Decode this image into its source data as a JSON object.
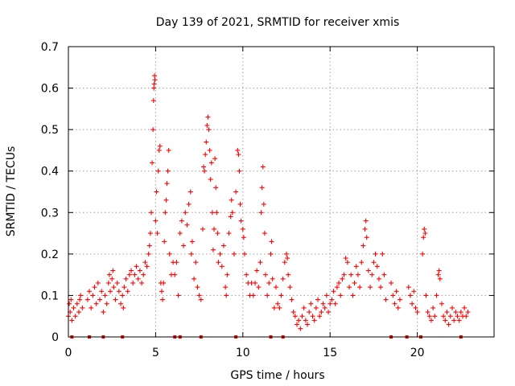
{
  "colors": {
    "series": "#ff0000",
    "grid": "#a0a0a0",
    "axis": "#000000"
  },
  "chart_data": {
    "type": "scatter",
    "title": "Day 139 of 2021, SRMTID for receiver xmis",
    "xlabel": "GPS time / hours",
    "ylabel": "SRMTID / TECUs",
    "xlim": [
      0,
      24.4
    ],
    "ylim": [
      0,
      0.7
    ],
    "xticks": [
      0,
      5,
      10,
      15,
      20
    ],
    "xtick_labels": [
      "0",
      "5",
      "10",
      "15",
      "20"
    ],
    "yticks": [
      0,
      0.1,
      0.2,
      0.3,
      0.4,
      0.5,
      0.6,
      0.7
    ],
    "ytick_labels": [
      "0",
      "0.1",
      "0.2",
      "0.3",
      "0.4",
      "0.5",
      "0.6",
      "0.7"
    ],
    "grid": true,
    "marker": "+",
    "series": [
      {
        "name": "SRMTID",
        "points": [
          [
            0.0,
            0.05
          ],
          [
            0.05,
            0.08
          ],
          [
            0.1,
            0.06
          ],
          [
            0.15,
            0.09
          ],
          [
            0.2,
            0.04
          ],
          [
            0.3,
            0.07
          ],
          [
            0.4,
            0.05
          ],
          [
            0.5,
            0.08
          ],
          [
            0.6,
            0.06
          ],
          [
            0.65,
            0.09
          ],
          [
            0.7,
            0.1
          ],
          [
            0.8,
            0.07
          ],
          [
            1.1,
            0.09
          ],
          [
            1.2,
            0.11
          ],
          [
            1.3,
            0.07
          ],
          [
            1.4,
            0.1
          ],
          [
            1.5,
            0.12
          ],
          [
            1.6,
            0.08
          ],
          [
            1.7,
            0.13
          ],
          [
            1.8,
            0.09
          ],
          [
            1.9,
            0.11
          ],
          [
            2.0,
            0.06
          ],
          [
            2.1,
            0.1
          ],
          [
            2.2,
            0.08
          ],
          [
            2.3,
            0.13
          ],
          [
            2.35,
            0.15
          ],
          [
            2.4,
            0.11
          ],
          [
            2.5,
            0.14
          ],
          [
            2.55,
            0.16
          ],
          [
            2.6,
            0.12
          ],
          [
            2.7,
            0.09
          ],
          [
            2.8,
            0.13
          ],
          [
            2.9,
            0.11
          ],
          [
            3.0,
            0.08
          ],
          [
            3.1,
            0.1
          ],
          [
            3.15,
            0.07
          ],
          [
            3.2,
            0.12
          ],
          [
            3.3,
            0.14
          ],
          [
            3.4,
            0.11
          ],
          [
            3.5,
            0.15
          ],
          [
            3.6,
            0.16
          ],
          [
            3.7,
            0.13
          ],
          [
            3.8,
            0.15
          ],
          [
            3.9,
            0.17
          ],
          [
            4.0,
            0.14
          ],
          [
            4.1,
            0.16
          ],
          [
            4.2,
            0.13
          ],
          [
            4.3,
            0.15
          ],
          [
            4.4,
            0.18
          ],
          [
            4.5,
            0.17
          ],
          [
            4.6,
            0.2
          ],
          [
            4.65,
            0.22
          ],
          [
            4.7,
            0.25
          ],
          [
            4.75,
            0.3
          ],
          [
            4.8,
            0.42
          ],
          [
            4.85,
            0.5
          ],
          [
            4.88,
            0.57
          ],
          [
            4.9,
            0.6
          ],
          [
            4.92,
            0.61
          ],
          [
            4.94,
            0.63
          ],
          [
            4.96,
            0.62
          ],
          [
            5.0,
            0.28
          ],
          [
            5.05,
            0.35
          ],
          [
            5.1,
            0.25
          ],
          [
            5.15,
            0.4
          ],
          [
            5.2,
            0.45
          ],
          [
            5.25,
            0.46
          ],
          [
            5.3,
            0.13
          ],
          [
            5.35,
            0.11
          ],
          [
            5.4,
            0.09
          ],
          [
            5.45,
            0.13
          ],
          [
            5.5,
            0.23
          ],
          [
            5.55,
            0.3
          ],
          [
            5.6,
            0.33
          ],
          [
            5.65,
            0.37
          ],
          [
            5.7,
            0.4
          ],
          [
            5.75,
            0.45
          ],
          [
            5.8,
            0.2
          ],
          [
            5.9,
            0.15
          ],
          [
            6.0,
            0.18
          ],
          [
            6.1,
            0.15
          ],
          [
            6.2,
            0.18
          ],
          [
            6.3,
            0.1
          ],
          [
            6.4,
            0.25
          ],
          [
            6.5,
            0.28
          ],
          [
            6.6,
            0.22
          ],
          [
            6.7,
            0.3
          ],
          [
            6.8,
            0.27
          ],
          [
            6.9,
            0.32
          ],
          [
            7.0,
            0.35
          ],
          [
            7.05,
            0.2
          ],
          [
            7.1,
            0.23
          ],
          [
            7.2,
            0.14
          ],
          [
            7.3,
            0.18
          ],
          [
            7.4,
            0.12
          ],
          [
            7.5,
            0.1
          ],
          [
            7.6,
            0.09
          ],
          [
            7.7,
            0.26
          ],
          [
            7.75,
            0.41
          ],
          [
            7.8,
            0.4
          ],
          [
            7.85,
            0.44
          ],
          [
            7.9,
            0.47
          ],
          [
            7.95,
            0.51
          ],
          [
            8.0,
            0.53
          ],
          [
            8.05,
            0.5
          ],
          [
            8.1,
            0.45
          ],
          [
            8.15,
            0.38
          ],
          [
            8.2,
            0.42
          ],
          [
            8.25,
            0.3
          ],
          [
            8.3,
            0.21
          ],
          [
            8.35,
            0.26
          ],
          [
            8.4,
            0.43
          ],
          [
            8.45,
            0.36
          ],
          [
            8.5,
            0.3
          ],
          [
            8.55,
            0.25
          ],
          [
            8.6,
            0.18
          ],
          [
            8.7,
            0.2
          ],
          [
            8.8,
            0.17
          ],
          [
            8.9,
            0.22
          ],
          [
            9.0,
            0.12
          ],
          [
            9.05,
            0.1
          ],
          [
            9.1,
            0.15
          ],
          [
            9.2,
            0.25
          ],
          [
            9.3,
            0.29
          ],
          [
            9.35,
            0.33
          ],
          [
            9.4,
            0.3
          ],
          [
            9.5,
            0.2
          ],
          [
            9.6,
            0.35
          ],
          [
            9.7,
            0.45
          ],
          [
            9.75,
            0.44
          ],
          [
            9.8,
            0.4
          ],
          [
            9.85,
            0.32
          ],
          [
            9.9,
            0.28
          ],
          [
            10.0,
            0.26
          ],
          [
            10.05,
            0.24
          ],
          [
            10.1,
            0.2
          ],
          [
            10.2,
            0.15
          ],
          [
            10.3,
            0.13
          ],
          [
            10.4,
            0.1
          ],
          [
            10.5,
            0.13
          ],
          [
            10.6,
            0.1
          ],
          [
            10.7,
            0.13
          ],
          [
            10.8,
            0.16
          ],
          [
            10.9,
            0.12
          ],
          [
            11.0,
            0.18
          ],
          [
            11.05,
            0.3
          ],
          [
            11.1,
            0.36
          ],
          [
            11.15,
            0.41
          ],
          [
            11.2,
            0.32
          ],
          [
            11.25,
            0.25
          ],
          [
            11.3,
            0.15
          ],
          [
            11.4,
            0.1
          ],
          [
            11.5,
            0.13
          ],
          [
            11.6,
            0.2
          ],
          [
            11.65,
            0.23
          ],
          [
            11.7,
            0.14
          ],
          [
            11.8,
            0.07
          ],
          [
            11.9,
            0.12
          ],
          [
            12.0,
            0.08
          ],
          [
            12.1,
            0.07
          ],
          [
            12.2,
            0.1
          ],
          [
            12.3,
            0.14
          ],
          [
            12.4,
            0.18
          ],
          [
            12.5,
            0.2
          ],
          [
            12.55,
            0.19
          ],
          [
            12.6,
            0.15
          ],
          [
            12.7,
            0.12
          ],
          [
            12.8,
            0.09
          ],
          [
            12.9,
            0.06
          ],
          [
            13.0,
            0.05
          ],
          [
            13.1,
            0.03
          ],
          [
            13.2,
            0.04
          ],
          [
            13.3,
            0.02
          ],
          [
            13.4,
            0.05
          ],
          [
            13.5,
            0.07
          ],
          [
            13.6,
            0.04
          ],
          [
            13.7,
            0.03
          ],
          [
            13.8,
            0.06
          ],
          [
            13.9,
            0.08
          ],
          [
            14.0,
            0.05
          ],
          [
            14.1,
            0.04
          ],
          [
            14.2,
            0.07
          ],
          [
            14.3,
            0.09
          ],
          [
            14.4,
            0.05
          ],
          [
            14.5,
            0.06
          ],
          [
            14.6,
            0.08
          ],
          [
            14.7,
            0.07
          ],
          [
            14.8,
            0.1
          ],
          [
            14.9,
            0.06
          ],
          [
            15.0,
            0.08
          ],
          [
            15.1,
            0.09
          ],
          [
            15.2,
            0.11
          ],
          [
            15.3,
            0.08
          ],
          [
            15.4,
            0.12
          ],
          [
            15.5,
            0.13
          ],
          [
            15.6,
            0.1
          ],
          [
            15.7,
            0.14
          ],
          [
            15.8,
            0.15
          ],
          [
            15.9,
            0.19
          ],
          [
            16.0,
            0.18
          ],
          [
            16.1,
            0.12
          ],
          [
            16.2,
            0.15
          ],
          [
            16.3,
            0.1
          ],
          [
            16.4,
            0.13
          ],
          [
            16.5,
            0.17
          ],
          [
            16.6,
            0.15
          ],
          [
            16.7,
            0.12
          ],
          [
            16.8,
            0.18
          ],
          [
            16.9,
            0.22
          ],
          [
            17.0,
            0.26
          ],
          [
            17.05,
            0.28
          ],
          [
            17.1,
            0.24
          ],
          [
            17.2,
            0.16
          ],
          [
            17.3,
            0.12
          ],
          [
            17.4,
            0.15
          ],
          [
            17.5,
            0.18
          ],
          [
            17.6,
            0.2
          ],
          [
            17.7,
            0.17
          ],
          [
            17.8,
            0.14
          ],
          [
            17.9,
            0.12
          ],
          [
            18.0,
            0.2
          ],
          [
            18.1,
            0.15
          ],
          [
            18.2,
            0.09
          ],
          [
            18.5,
            0.13
          ],
          [
            18.6,
            0.1
          ],
          [
            18.7,
            0.08
          ],
          [
            18.8,
            0.11
          ],
          [
            18.9,
            0.07
          ],
          [
            19.0,
            0.09
          ],
          [
            19.5,
            0.12
          ],
          [
            19.6,
            0.1
          ],
          [
            19.7,
            0.08
          ],
          [
            19.8,
            0.11
          ],
          [
            19.9,
            0.07
          ],
          [
            20.0,
            0.06
          ],
          [
            20.3,
            0.2
          ],
          [
            20.35,
            0.24
          ],
          [
            20.4,
            0.26
          ],
          [
            20.45,
            0.25
          ],
          [
            20.5,
            0.1
          ],
          [
            20.6,
            0.06
          ],
          [
            20.7,
            0.05
          ],
          [
            20.8,
            0.04
          ],
          [
            20.9,
            0.07
          ],
          [
            21.0,
            0.05
          ],
          [
            21.1,
            0.1
          ],
          [
            21.2,
            0.15
          ],
          [
            21.25,
            0.16
          ],
          [
            21.3,
            0.14
          ],
          [
            21.4,
            0.08
          ],
          [
            21.5,
            0.05
          ],
          [
            21.6,
            0.04
          ],
          [
            21.7,
            0.06
          ],
          [
            21.8,
            0.03
          ],
          [
            21.9,
            0.05
          ],
          [
            22.0,
            0.07
          ],
          [
            22.1,
            0.04
          ],
          [
            22.2,
            0.06
          ],
          [
            22.3,
            0.05
          ],
          [
            22.4,
            0.04
          ],
          [
            22.5,
            0.06
          ],
          [
            22.6,
            0.05
          ],
          [
            22.7,
            0.07
          ],
          [
            22.8,
            0.05
          ],
          [
            22.9,
            0.06
          ]
        ]
      }
    ],
    "zero_markers_x": [
      0.2,
      1.2,
      2.0,
      3.1,
      6.1,
      6.4,
      7.6,
      9.6,
      11.6,
      12.3,
      18.5,
      19.4,
      20.2,
      22.5
    ]
  }
}
